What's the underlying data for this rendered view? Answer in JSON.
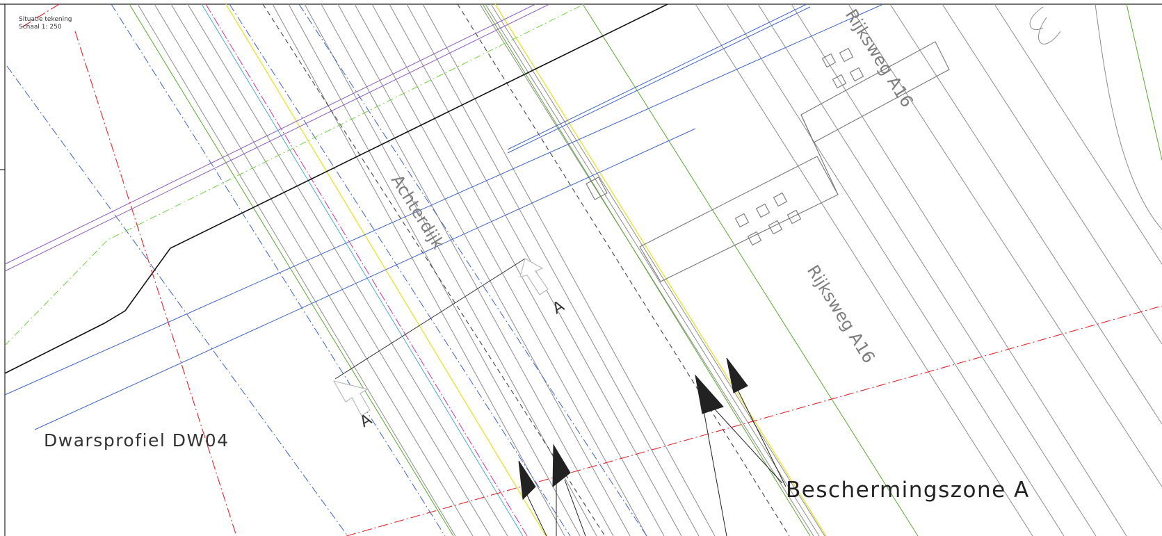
{
  "legend": {
    "title": "Situatie tekening",
    "scale": "Schaal 1: 250"
  },
  "labels": {
    "street_achterdijk": "Achterdijk",
    "road_a16_upper": "Rijksweg A16",
    "road_a16_lower": "Rijksweg A16",
    "section_marker_left": "A",
    "section_marker_right": "A",
    "profile_title": "Dwarsprofiel DW04",
    "protection_zone": "Beschermingszone A"
  },
  "colors": {
    "background": "#ffffff",
    "line_gray": "#8a8a8a",
    "line_black": "#111111",
    "cable_blue": "#3d63c9",
    "pipe_red": "#e0282e",
    "green": "#5aa832",
    "dash_green": "#6fd13f",
    "yellow": "#ece63a",
    "purple": "#8a5cc0",
    "magenta": "#d0349e",
    "text_gray": "#7e7e7e",
    "text_dark": "#222222"
  }
}
